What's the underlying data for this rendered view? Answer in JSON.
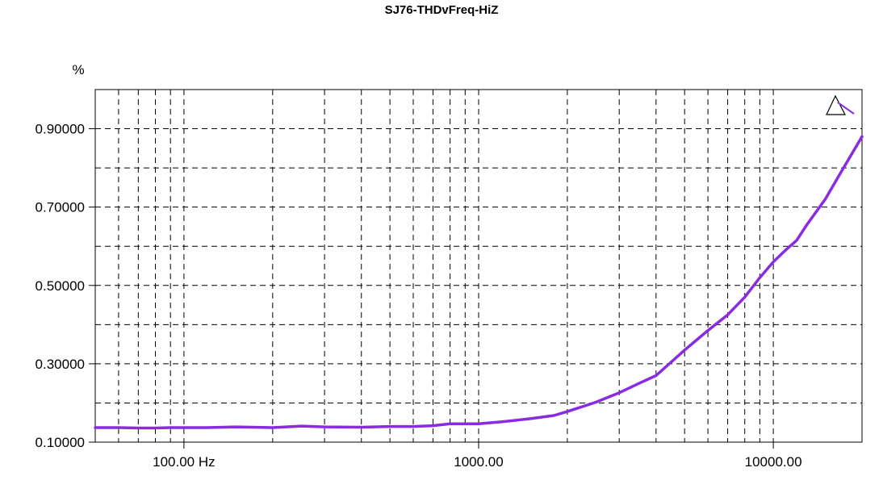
{
  "chart_data": {
    "type": "line",
    "title": "SJ76-THDvFreq-HiZ",
    "y_unit": "%",
    "x_scale": "log",
    "xlim": [
      50,
      20000
    ],
    "ylim": [
      0.1,
      1.0
    ],
    "grid": true,
    "x_ticks": [
      {
        "value": 100,
        "label": "100.00 Hz"
      },
      {
        "value": 1000,
        "label": "1000.00"
      },
      {
        "value": 10000,
        "label": "10000.00"
      }
    ],
    "y_ticks": [
      {
        "value": 0.1,
        "label": "0.10000"
      },
      {
        "value": 0.3,
        "label": "0.30000"
      },
      {
        "value": 0.5,
        "label": "0.50000"
      },
      {
        "value": 0.7,
        "label": "0.70000"
      },
      {
        "value": 0.9,
        "label": "0.90000"
      }
    ],
    "series": [
      {
        "color": "#8a2be2",
        "x": [
          50,
          60,
          70,
          80,
          90,
          100,
          120,
          150,
          200,
          250,
          300,
          400,
          500,
          600,
          700,
          800,
          1000,
          1200,
          1500,
          1800,
          2000,
          2500,
          3000,
          3500,
          4000,
          5000,
          6000,
          7000,
          8000,
          9000,
          10000,
          11000,
          12000,
          13000,
          15000,
          17000,
          20000
        ],
        "y": [
          0.137,
          0.137,
          0.136,
          0.136,
          0.137,
          0.137,
          0.137,
          0.139,
          0.137,
          0.141,
          0.139,
          0.138,
          0.14,
          0.14,
          0.142,
          0.147,
          0.147,
          0.152,
          0.16,
          0.168,
          0.178,
          0.202,
          0.226,
          0.25,
          0.27,
          0.335,
          0.385,
          0.425,
          0.47,
          0.52,
          0.56,
          0.59,
          0.615,
          0.655,
          0.72,
          0.79,
          0.88
        ]
      }
    ],
    "marker": "cursor-triangle"
  }
}
